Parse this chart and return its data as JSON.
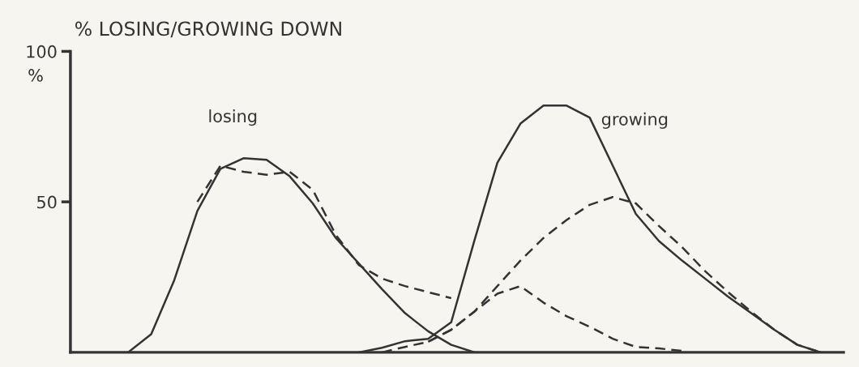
{
  "chart_data": {
    "type": "line",
    "title": "% LOSING/GROWING DOWN",
    "ylabel": "%",
    "categories": [
      null,
      null,
      null,
      null,
      null,
      null,
      null,
      null,
      null,
      null,
      null,
      null,
      null,
      null,
      null,
      null,
      null,
      null,
      null,
      null,
      null,
      null,
      null,
      null,
      null,
      null,
      null,
      null,
      null,
      null,
      null,
      null
    ],
    "ylim": [
      0,
      100
    ],
    "yticks": [
      50,
      100
    ],
    "tick_labels": "y",
    "grid": false,
    "marker": "none",
    "annotations": [
      "losing",
      "growing"
    ],
    "series": [
      {
        "color": "#333333",
        "line_style": "solid",
        "values": [
          null,
          0,
          6,
          24,
          47,
          61,
          64.5,
          64,
          58.5,
          49.5,
          38,
          29.5,
          21,
          13,
          7,
          2.5,
          0,
          null,
          null,
          null,
          null,
          null,
          null,
          null,
          null,
          null,
          null,
          null,
          null,
          null,
          null,
          null
        ]
      },
      {
        "color": "#333333",
        "line_style": "dashed",
        "values": [
          null,
          null,
          null,
          null,
          50,
          62,
          60,
          59,
          60,
          54,
          39,
          29,
          24.5,
          22,
          20,
          18,
          null,
          null,
          null,
          null,
          null,
          null,
          null,
          null,
          null,
          null,
          null,
          null,
          null,
          null,
          null,
          null
        ]
      },
      {
        "color": "#333333",
        "line_style": "solid",
        "values": [
          null,
          null,
          null,
          null,
          null,
          null,
          null,
          null,
          null,
          null,
          null,
          0,
          1.5,
          3.7,
          4.5,
          10,
          37,
          63,
          76,
          82,
          82,
          78,
          62,
          46,
          37,
          30.5,
          24.5,
          18.5,
          13,
          7.5,
          2.5,
          0
        ]
      },
      {
        "color": "#333333",
        "line_style": "dashed",
        "values": [
          null,
          null,
          null,
          null,
          null,
          null,
          null,
          null,
          null,
          null,
          null,
          null,
          0,
          1.8,
          3.5,
          7.5,
          13.5,
          22,
          30.5,
          38,
          44,
          49,
          51.6,
          49.5,
          42,
          35,
          27,
          20,
          13.5,
          7.5,
          2.5,
          0
        ]
      },
      {
        "color": "#333333",
        "line_style": "dashed",
        "values": [
          null,
          null,
          null,
          null,
          null,
          null,
          null,
          null,
          null,
          null,
          null,
          null,
          null,
          null,
          3.5,
          7.5,
          13.5,
          19.5,
          22,
          16.5,
          12,
          8.5,
          4.5,
          1.8,
          1.3,
          0.5,
          null,
          null,
          null,
          null,
          null,
          null
        ]
      }
    ]
  }
}
